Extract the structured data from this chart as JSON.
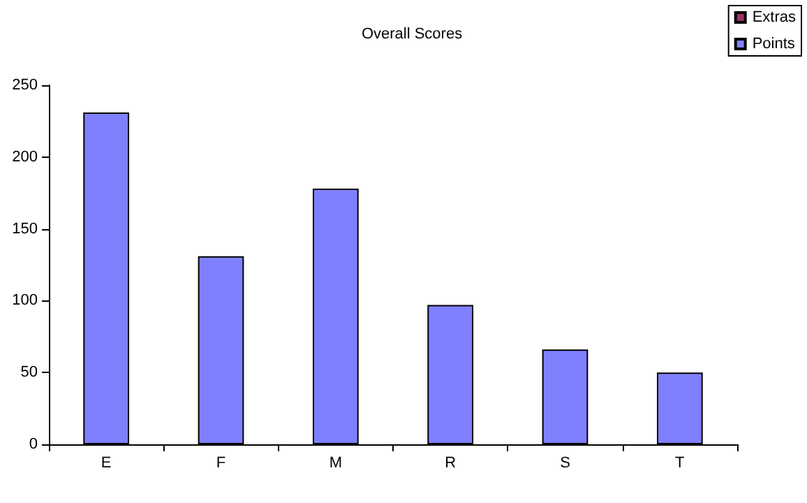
{
  "chart_data": {
    "type": "bar",
    "title": "Overall Scores",
    "categories": [
      "E",
      "F",
      "M",
      "R",
      "S",
      "T"
    ],
    "series": [
      {
        "name": "Points",
        "color": "#8080ff",
        "values": [
          231,
          131,
          178,
          97,
          66,
          50
        ]
      },
      {
        "name": "Extras",
        "color": "#993366",
        "values": [
          0,
          0,
          0,
          0,
          0,
          0
        ]
      }
    ],
    "stacked": true,
    "ylim": [
      0,
      250
    ],
    "yticks": [
      0,
      50,
      100,
      150,
      200,
      250
    ],
    "grid": false,
    "legend": "top right"
  }
}
